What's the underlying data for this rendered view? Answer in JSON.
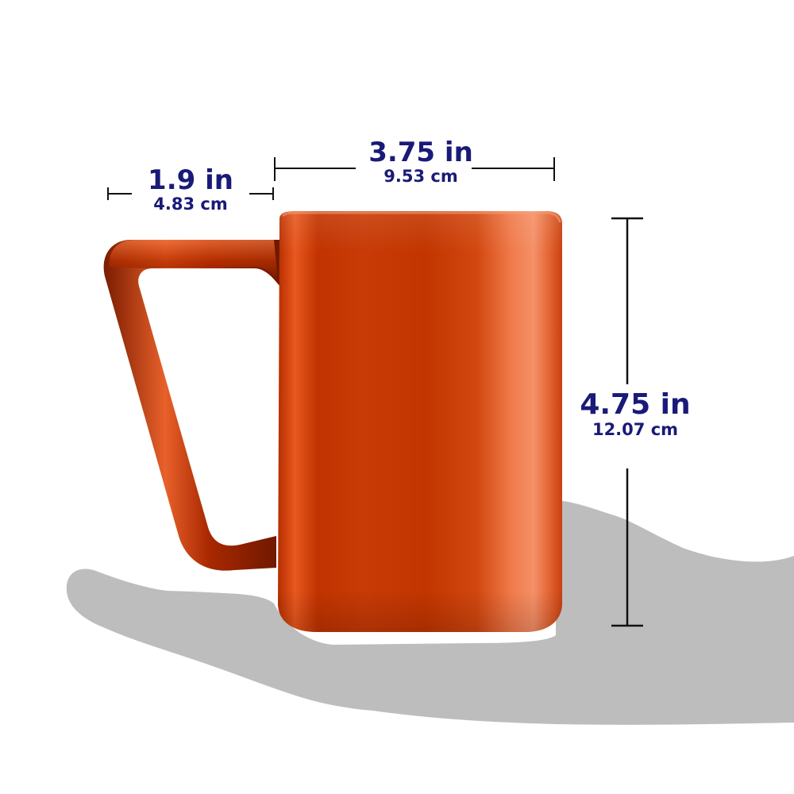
{
  "colors": {
    "dimension_text": "#1a1a78",
    "dimension_lines": "#111111",
    "mug_body": "#c93a05",
    "mug_highlight": "#f07a4a",
    "mug_dark": "#8a2000",
    "hand_silhouette": "#bdbdbd"
  },
  "dimensions": {
    "handle": {
      "imperial": "1.9 in",
      "metric": "4.83 cm"
    },
    "width": {
      "imperial": "3.75 in",
      "metric": "9.53 cm"
    },
    "height": {
      "imperial": "4.75 in",
      "metric": "12.07 cm"
    }
  },
  "objects": {
    "mug": "orange-mug",
    "hand": "hand-silhouette"
  }
}
